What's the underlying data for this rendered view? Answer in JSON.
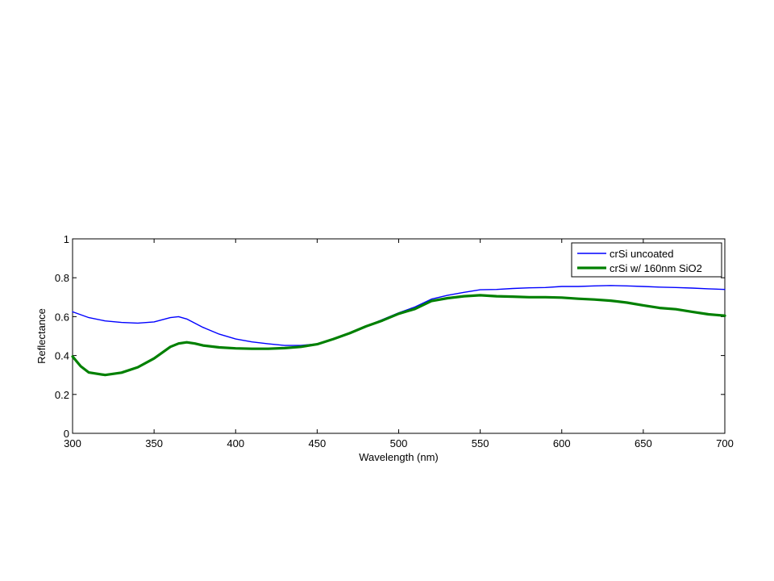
{
  "chart_data": {
    "type": "line",
    "title": "",
    "xlabel": "Wavelength (nm)",
    "ylabel": "Reflectance",
    "xlim": [
      300,
      700
    ],
    "ylim": [
      0,
      1
    ],
    "xticks": [
      300,
      350,
      400,
      450,
      500,
      550,
      600,
      650,
      700
    ],
    "yticks": [
      0,
      0.2,
      0.4,
      0.6,
      0.8,
      1
    ],
    "xtick_labels": [
      "300",
      "350",
      "400",
      "450",
      "500",
      "550",
      "600",
      "650",
      "700"
    ],
    "ytick_labels": [
      "0",
      "0.2",
      "0.4",
      "0.6",
      "0.8",
      "1"
    ],
    "grid": false,
    "legend_position": "top-right",
    "series": [
      {
        "name": "crSi uncoated",
        "color": "#0000ff",
        "x": [
          300,
          310,
          320,
          330,
          340,
          350,
          360,
          365,
          370,
          380,
          390,
          400,
          410,
          420,
          430,
          440,
          450,
          460,
          470,
          480,
          490,
          500,
          510,
          520,
          530,
          540,
          550,
          560,
          570,
          580,
          590,
          600,
          610,
          620,
          630,
          640,
          650,
          660,
          670,
          680,
          690,
          700
        ],
        "y": [
          0.625,
          0.595,
          0.578,
          0.57,
          0.567,
          0.573,
          0.595,
          0.6,
          0.588,
          0.545,
          0.51,
          0.485,
          0.47,
          0.46,
          0.452,
          0.452,
          0.46,
          0.483,
          0.515,
          0.55,
          0.585,
          0.62,
          0.65,
          0.69,
          0.71,
          0.725,
          0.738,
          0.74,
          0.745,
          0.748,
          0.75,
          0.755,
          0.755,
          0.758,
          0.76,
          0.758,
          0.755,
          0.752,
          0.75,
          0.747,
          0.743,
          0.74
        ]
      },
      {
        "name": "crSi w/ 160nm SiO2",
        "color": "#008000",
        "x": [
          300,
          305,
          310,
          320,
          330,
          340,
          350,
          360,
          365,
          370,
          375,
          380,
          390,
          400,
          410,
          420,
          430,
          440,
          450,
          460,
          470,
          480,
          490,
          500,
          510,
          520,
          530,
          540,
          550,
          560,
          570,
          580,
          590,
          600,
          610,
          620,
          630,
          640,
          650,
          660,
          670,
          680,
          690,
          700
        ],
        "y": [
          0.395,
          0.345,
          0.313,
          0.3,
          0.312,
          0.34,
          0.385,
          0.445,
          0.462,
          0.468,
          0.462,
          0.452,
          0.442,
          0.437,
          0.435,
          0.435,
          0.438,
          0.445,
          0.458,
          0.485,
          0.515,
          0.55,
          0.58,
          0.615,
          0.64,
          0.68,
          0.695,
          0.705,
          0.71,
          0.705,
          0.703,
          0.7,
          0.7,
          0.698,
          0.692,
          0.688,
          0.682,
          0.672,
          0.658,
          0.645,
          0.638,
          0.625,
          0.612,
          0.605
        ]
      }
    ]
  }
}
